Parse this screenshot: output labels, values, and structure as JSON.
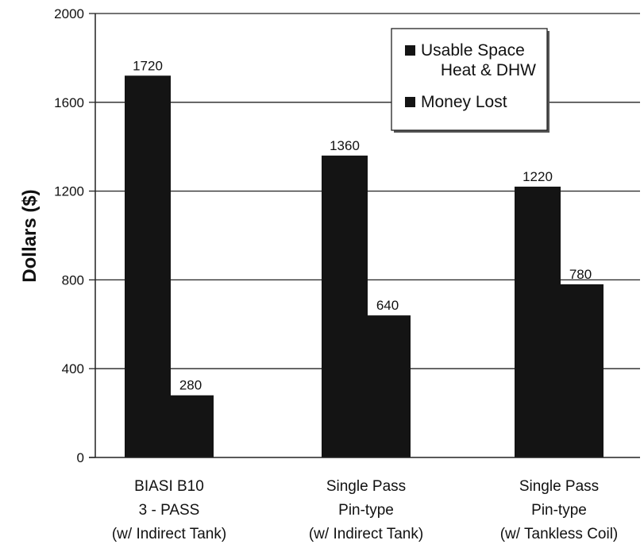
{
  "chart_data": {
    "type": "bar",
    "title": "",
    "xlabel": "",
    "ylabel": "Dollars ($)",
    "ylim": [
      0,
      2000
    ],
    "yticks": [
      "0",
      "400",
      "800",
      "1200",
      "1600",
      "2000"
    ],
    "grid": true,
    "legend_position": "top-right",
    "categories": [
      [
        "BIASI B10",
        "3 - PASS",
        "(w/ Indirect Tank)"
      ],
      [
        "Single Pass",
        "Pin-type",
        "(w/ Indirect Tank)"
      ],
      [
        "Single Pass",
        "Pin-type",
        "(w/ Tankless Coil)"
      ]
    ],
    "series": [
      {
        "name": [
          "Usable Space",
          "Heat & DHW"
        ],
        "values": [
          1720,
          1360,
          1220
        ],
        "labels": [
          "1720",
          "1360",
          "1220"
        ],
        "color": "#141414"
      },
      {
        "name": [
          "Money Lost"
        ],
        "values": [
          280,
          640,
          780
        ],
        "labels": [
          "280",
          "640",
          "780"
        ],
        "color": "#141414"
      }
    ]
  }
}
